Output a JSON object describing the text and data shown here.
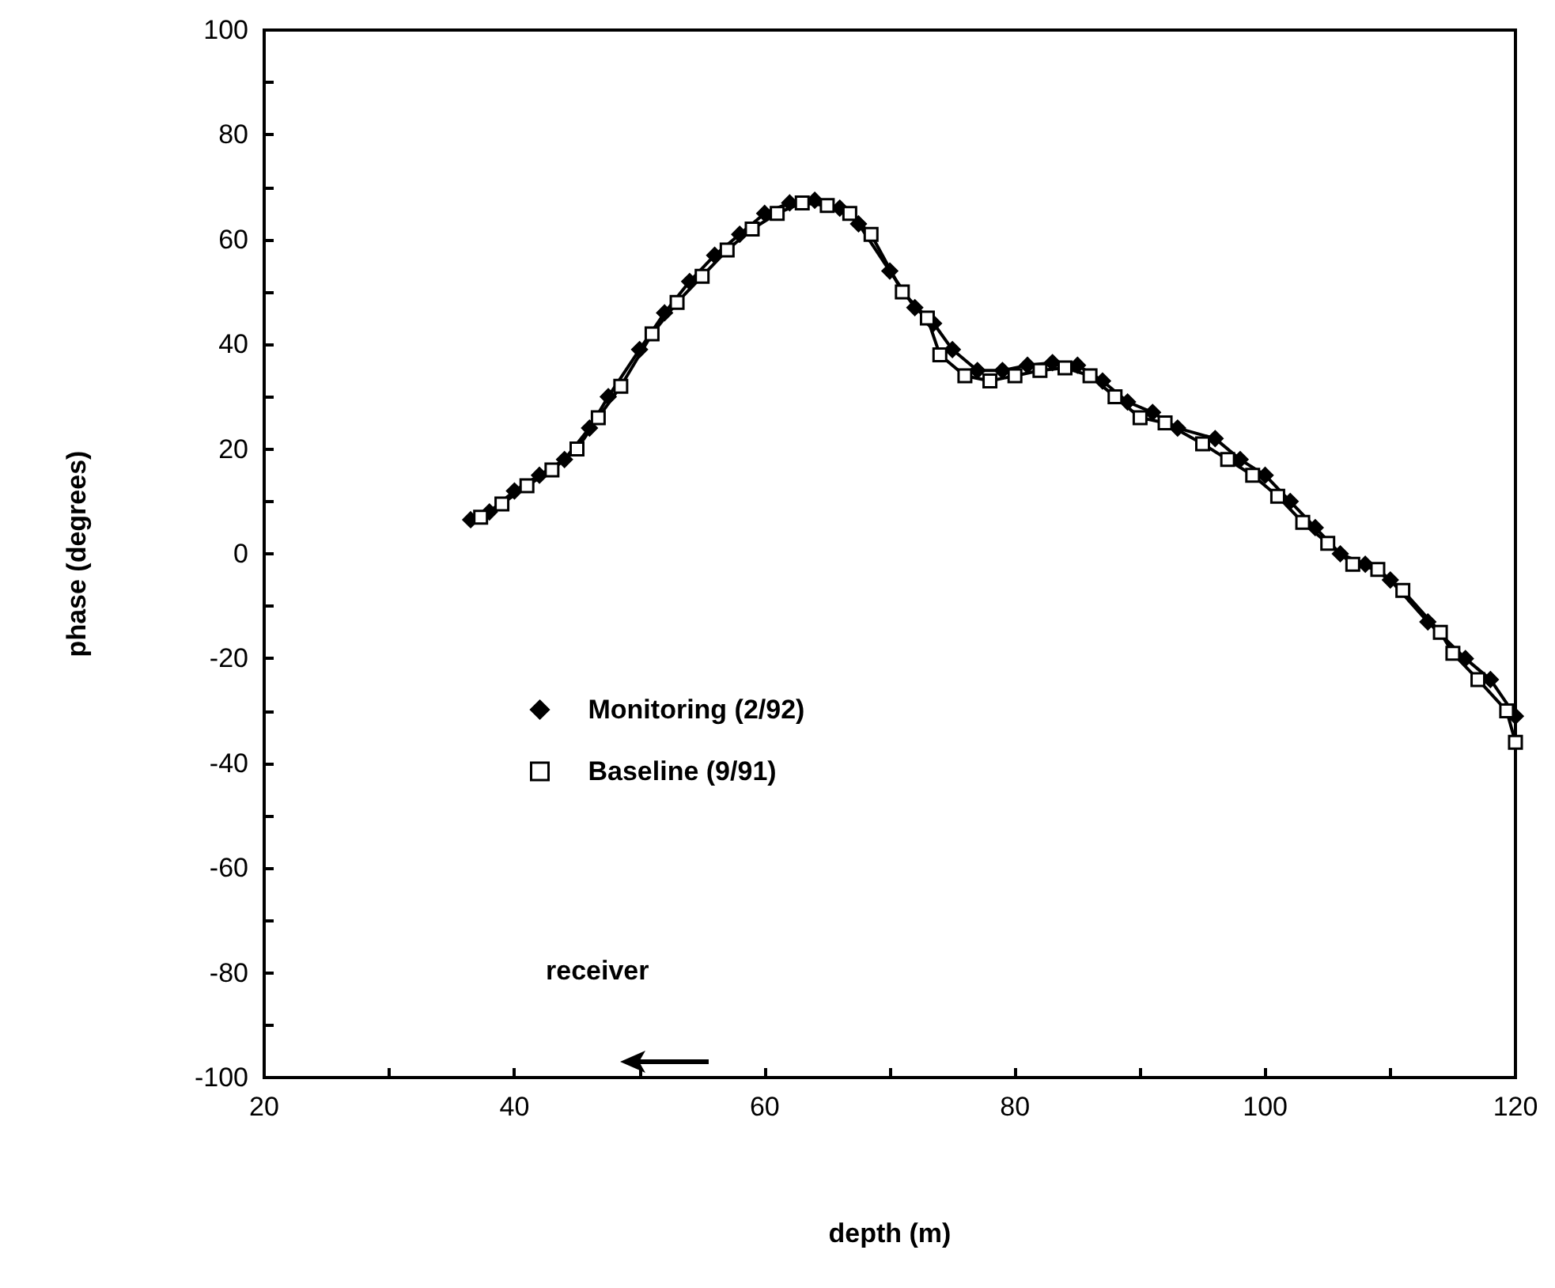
{
  "chart_data": {
    "type": "line",
    "xlabel": "depth (m)",
    "ylabel": "phase (degrees)",
    "xlim": [
      20,
      120
    ],
    "ylim": [
      -100,
      100
    ],
    "xticks": [
      20,
      {
        "value": 30,
        "label": null
      },
      40,
      {
        "value": 50,
        "label": null
      },
      60,
      {
        "value": 70,
        "label": null
      },
      80,
      {
        "value": 90,
        "label": null
      },
      100,
      {
        "value": 110,
        "label": null
      },
      120
    ],
    "yticks": [
      -100,
      {
        "value": -90,
        "label": null
      },
      -80,
      {
        "value": -70,
        "label": null
      },
      -60,
      {
        "value": -50,
        "label": null
      },
      -40,
      {
        "value": -30,
        "label": null
      },
      -20,
      {
        "value": -10,
        "label": null
      },
      0,
      {
        "value": 10,
        "label": null
      },
      20,
      {
        "value": 30,
        "label": null
      },
      40,
      {
        "value": 50,
        "label": null
      },
      60,
      {
        "value": 70,
        "label": null
      },
      80,
      {
        "value": 90,
        "label": null
      },
      100
    ],
    "grid": false,
    "legend": "left",
    "line_style": "solid",
    "annotations": [
      "receiver"
    ],
    "series": [
      {
        "name": "Monitoring (2/92)",
        "color": "#000000",
        "marker": "diamond",
        "x": [
          36.5,
          38,
          40,
          42,
          44,
          46,
          47.5,
          50,
          52,
          54,
          56,
          58,
          60,
          62,
          64,
          66,
          67.5,
          70,
          72,
          73.5,
          75,
          77,
          79,
          81,
          83,
          85,
          87,
          89,
          91,
          93,
          96,
          98,
          100,
          102,
          104,
          106,
          108,
          110,
          113,
          116,
          118,
          120
        ],
        "values": [
          6.5,
          8,
          12,
          15,
          18,
          24,
          30,
          39,
          46,
          52,
          57,
          61,
          65,
          67,
          67.5,
          66,
          63,
          54,
          47,
          44,
          39,
          35,
          35,
          36,
          36.5,
          36,
          33,
          29,
          27,
          24,
          22,
          18,
          15,
          10,
          5,
          0,
          -2,
          -5,
          -13,
          -20,
          -24,
          -31
        ]
      },
      {
        "name": "Baseline (9/91)",
        "color": "#000000",
        "marker": "square",
        "x": [
          37.3,
          39,
          41,
          43,
          45,
          46.7,
          48.5,
          51,
          53,
          55,
          57,
          59,
          61,
          63,
          65,
          66.8,
          68.5,
          71,
          73,
          74,
          76,
          78,
          80,
          82,
          84,
          86,
          88,
          90,
          92,
          95,
          97,
          99,
          101,
          103,
          105,
          107,
          109,
          111,
          114,
          115,
          117,
          119.3,
          120
        ],
        "values": [
          7,
          9.5,
          13,
          16,
          20,
          26,
          32,
          42,
          48,
          53,
          58,
          62,
          65,
          67,
          66.5,
          65,
          61,
          50,
          45,
          38,
          34,
          33,
          34,
          35,
          35.5,
          34,
          30,
          26,
          25,
          21,
          18,
          15,
          11,
          6,
          2,
          -2,
          -3,
          -7,
          -15,
          -19,
          -24,
          -30,
          -36
        ]
      }
    ]
  }
}
